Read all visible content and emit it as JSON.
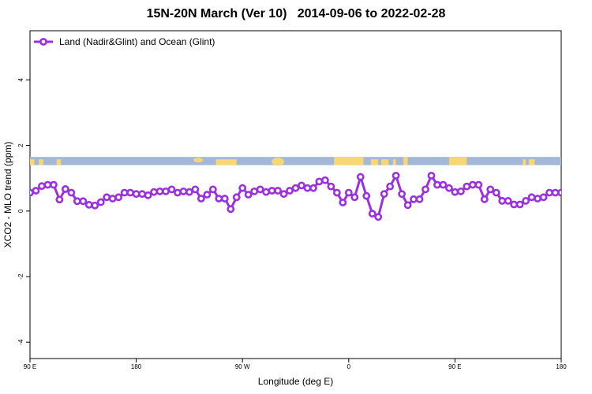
{
  "chart_data": {
    "type": "line",
    "title": "15N-20N March (Ver 10)   2014-09-06 to 2022-02-28",
    "xlabel": "Longitude (deg E)",
    "ylabel": "XCO2 - MLO trend (ppm)",
    "xlim": [
      90,
      450
    ],
    "ylim": [
      -4.5,
      5.5
    ],
    "x_ticks": [
      {
        "value": 90,
        "label": "90 E"
      },
      {
        "value": 162,
        "label": "180"
      },
      {
        "value": 234,
        "label": "90 W"
      },
      {
        "value": 306,
        "label": "0"
      },
      {
        "value": 378,
        "label": "90 E"
      },
      {
        "value": 450,
        "label": "180"
      }
    ],
    "y_ticks": [
      {
        "value": -4,
        "label": "-4"
      },
      {
        "value": -2,
        "label": "-2"
      },
      {
        "value": 0,
        "label": "0"
      },
      {
        "value": 2,
        "label": "2"
      },
      {
        "value": 4,
        "label": "4"
      }
    ],
    "grid": false,
    "legend_position": "top-left",
    "map_strip": {
      "y_range": [
        1.4,
        1.65
      ],
      "ocean_color": "#a3b7d9",
      "land_color": "#f7d774"
    },
    "series": [
      {
        "name": "Land (Nadir&Glint) and Ocean (Glint)",
        "color": "#9b30e0",
        "x": [
          90,
          94,
          98,
          102,
          106,
          110,
          114,
          118,
          122,
          126,
          130,
          134,
          138,
          142,
          146,
          150,
          154,
          158,
          162,
          166,
          170,
          174,
          178,
          182,
          186,
          190,
          194,
          198,
          202,
          206,
          210,
          214,
          218,
          222,
          226,
          230,
          234,
          238,
          242,
          246,
          250,
          254,
          258,
          262,
          266,
          270,
          274,
          278,
          282,
          286,
          290,
          294,
          298,
          302,
          306,
          310,
          314,
          318,
          322,
          326,
          330,
          334,
          338,
          342,
          346,
          350,
          354,
          358,
          362,
          366,
          370,
          374,
          378,
          382,
          386,
          390,
          394,
          398,
          402,
          406,
          410,
          414,
          418,
          422,
          426,
          430,
          434,
          438,
          442,
          446,
          450
        ],
        "y": [
          0.56,
          0.62,
          0.76,
          0.8,
          0.8,
          0.35,
          0.67,
          0.56,
          0.3,
          0.3,
          0.19,
          0.17,
          0.27,
          0.42,
          0.38,
          0.42,
          0.56,
          0.56,
          0.52,
          0.52,
          0.48,
          0.58,
          0.6,
          0.6,
          0.66,
          0.56,
          0.6,
          0.58,
          0.66,
          0.38,
          0.5,
          0.66,
          0.38,
          0.38,
          0.06,
          0.42,
          0.7,
          0.5,
          0.6,
          0.66,
          0.58,
          0.62,
          0.62,
          0.52,
          0.62,
          0.7,
          0.78,
          0.7,
          0.7,
          0.9,
          0.94,
          0.75,
          0.56,
          0.26,
          0.56,
          0.42,
          1.04,
          0.46,
          -0.08,
          -0.18,
          0.52,
          0.75,
          1.08,
          0.52,
          0.18,
          0.36,
          0.36,
          0.66,
          1.08,
          0.8,
          0.8,
          0.7,
          0.58,
          0.6,
          0.75,
          0.8,
          0.8,
          0.36,
          0.66,
          0.56,
          0.31,
          0.31,
          0.2,
          0.2,
          0.31,
          0.42,
          0.38,
          0.42,
          0.56,
          0.56,
          0.56
        ]
      }
    ]
  }
}
